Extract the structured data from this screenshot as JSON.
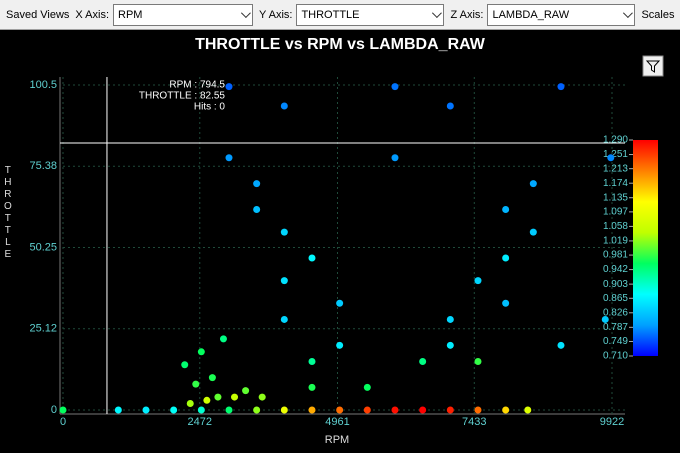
{
  "toolbar": {
    "saved_views": "Saved Views",
    "x_label": "X Axis:",
    "x_value": "RPM",
    "y_label": "Y Axis:",
    "y_value": "THROTTLE",
    "z_label": "Z Axis:",
    "z_value": "LAMBDA_RAW",
    "scales": "Scales"
  },
  "chart_data": {
    "type": "scatter",
    "title": "THROTTLE vs RPM vs LAMBDA_RAW",
    "x_label": "RPM",
    "y_label": "THROTTLE",
    "x": [
      0,
      1000,
      1500,
      2000,
      2500,
      3000,
      3500,
      4000,
      4500,
      5000,
      5500,
      6000,
      6500,
      7000,
      7500,
      8000,
      8400,
      2300,
      2600,
      2800,
      3100,
      2400,
      2700,
      2200,
      2500,
      2900,
      3300,
      3600,
      4500,
      5500,
      4500,
      6500,
      7500,
      5000,
      7000,
      9000,
      4000,
      7000,
      9800,
      5000,
      8000,
      4000,
      7500,
      4500,
      8000,
      4000,
      8500,
      3500,
      8000,
      3500,
      8500,
      3000,
      6000,
      9900,
      4000,
      7000,
      3000,
      6000,
      9000
    ],
    "y": [
      0,
      0,
      0,
      0,
      0,
      0,
      0,
      0,
      0,
      0,
      0,
      0,
      0,
      0,
      0,
      0,
      0,
      2,
      3,
      4,
      4,
      8,
      10,
      14,
      18,
      22,
      6,
      4,
      7,
      7,
      15,
      15,
      15,
      20,
      20,
      20,
      28,
      28,
      28,
      33,
      33,
      40,
      40,
      47,
      47,
      55,
      55,
      62,
      62,
      70,
      70,
      78,
      78,
      78,
      94,
      94,
      100,
      100,
      100
    ],
    "z": [
      0.96,
      0.87,
      0.86,
      0.88,
      0.9,
      0.95,
      1.02,
      1.1,
      1.18,
      1.22,
      1.25,
      1.28,
      1.29,
      1.27,
      1.22,
      1.15,
      1.08,
      1.03,
      1.06,
      1.0,
      1.05,
      0.98,
      0.97,
      0.95,
      0.96,
      0.94,
      1.0,
      1.02,
      0.97,
      0.96,
      0.93,
      0.94,
      0.98,
      0.86,
      0.86,
      0.85,
      0.84,
      0.84,
      0.83,
      0.83,
      0.82,
      0.85,
      0.84,
      0.87,
      0.86,
      0.84,
      0.83,
      0.82,
      0.81,
      0.8,
      0.8,
      0.79,
      0.79,
      0.78,
      0.78,
      0.77,
      0.76,
      0.77,
      0.76
    ],
    "xlim": [
      0,
      9922
    ],
    "xticks": [
      0,
      2472,
      4961,
      7433,
      9922
    ],
    "ylim": [
      0,
      100.5
    ],
    "yticks": [
      0,
      25.12,
      50.25,
      75.38,
      100.5
    ],
    "zlim": [
      0.71,
      1.29
    ],
    "zticks": [
      {
        "value": 1.29,
        "label": "1.290"
      },
      1.251,
      1.213,
      1.174,
      1.135,
      1.097,
      1.058,
      1.019,
      0.981,
      0.942,
      0.903,
      0.865,
      0.826,
      0.787,
      0.749,
      {
        "value": 0.71,
        "label": "0.710"
      }
    ],
    "colormap": [
      "#0000ff",
      "#00a0ff",
      "#00ffff",
      "#00ff60",
      "#c0ff00",
      "#ffff00",
      "#ff8000",
      "#ff0000"
    ],
    "grid": true,
    "cursor": {
      "x": 794.5,
      "y": 82.55,
      "lines": [
        "RPM : 794.5",
        "THROTTLE : 82.55",
        "Hits : 0"
      ]
    }
  }
}
